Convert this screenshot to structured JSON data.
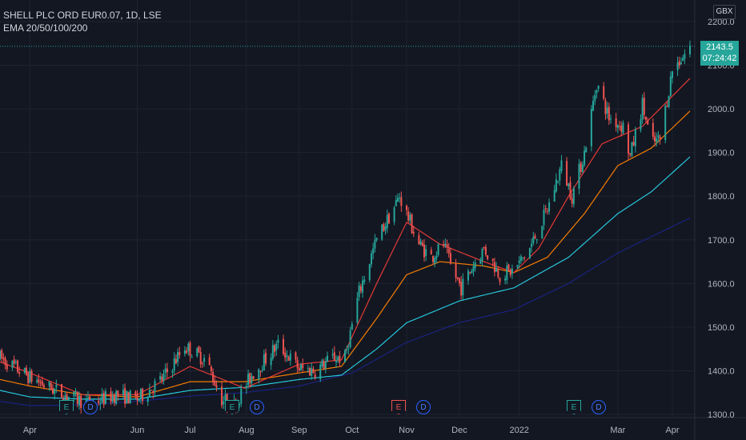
{
  "header": {
    "symbol_line": "SHELL PLC ORD EUR0.07, 1D, LSE",
    "indicator_line": "EMA 20/50/100/200"
  },
  "currency": "GBX",
  "last_price": {
    "value": "2143.5",
    "countdown": "07:24:42",
    "color": "#26a69a"
  },
  "events": [
    {
      "type": "E",
      "color": "green"
    },
    {
      "type": "D",
      "color": "blue"
    },
    {
      "type": "E",
      "color": "green"
    },
    {
      "type": "D",
      "color": "blue"
    },
    {
      "type": "E",
      "color": "red"
    },
    {
      "type": "D",
      "color": "blue"
    },
    {
      "type": "E",
      "color": "green"
    },
    {
      "type": "D",
      "color": "blue"
    }
  ],
  "chart_data": {
    "type": "candlestick",
    "title": "SHELL PLC ORD EUR0.07, 1D, LSE",
    "y_ticks": [
      "1300.0",
      "1400.0",
      "1500.0",
      "1600.0",
      "1700.0",
      "1800.0",
      "1900.0",
      "2000.0",
      "2100.0",
      "2200.0"
    ],
    "ylim": [
      1295,
      2235
    ],
    "x_ticks": [
      "Apr",
      "Jun",
      "Jul",
      "Aug",
      "Sep",
      "Oct",
      "Nov",
      "Dec",
      "2022",
      "Mar",
      "Apr"
    ],
    "x_tick_dates": [
      "2021-04-01",
      "2021-06-01",
      "2021-07-01",
      "2021-08-02",
      "2021-09-01",
      "2021-10-01",
      "2021-11-01",
      "2021-12-01",
      "2022-01-04",
      "2022-03-01",
      "2022-04-01"
    ],
    "colors": {
      "up": "#26a69a",
      "down": "#ef5350",
      "ema20": "#e53935",
      "ema50": "#f57c00",
      "ema100": "#26c6da",
      "ema200": "#1a237e"
    },
    "price_keypoints": [
      [
        "2021-03-15",
        1430
      ],
      [
        "2021-04-01",
        1385
      ],
      [
        "2021-04-20",
        1345
      ],
      [
        "2021-05-05",
        1325
      ],
      [
        "2021-05-20",
        1345
      ],
      [
        "2021-06-01",
        1335
      ],
      [
        "2021-06-15",
        1380
      ],
      [
        "2021-06-28",
        1455
      ],
      [
        "2021-07-10",
        1425
      ],
      [
        "2021-07-19",
        1335
      ],
      [
        "2021-07-26",
        1320
      ],
      [
        "2021-08-05",
        1390
      ],
      [
        "2021-08-20",
        1460
      ],
      [
        "2021-09-01",
        1405
      ],
      [
        "2021-09-10",
        1400
      ],
      [
        "2021-09-20",
        1430
      ],
      [
        "2021-09-27",
        1430
      ],
      [
        "2021-10-05",
        1580
      ],
      [
        "2021-10-15",
        1700
      ],
      [
        "2021-10-25",
        1775
      ],
      [
        "2021-10-28",
        1800
      ],
      [
        "2021-11-01",
        1760
      ],
      [
        "2021-11-08",
        1690
      ],
      [
        "2021-11-15",
        1660
      ],
      [
        "2021-11-22",
        1690
      ],
      [
        "2021-11-26",
        1640
      ],
      [
        "2021-12-02",
        1590
      ],
      [
        "2021-12-10",
        1650
      ],
      [
        "2021-12-15",
        1680
      ],
      [
        "2021-12-24",
        1620
      ],
      [
        "2022-01-01",
        1630
      ],
      [
        "2022-01-10",
        1680
      ],
      [
        "2022-01-20",
        1770
      ],
      [
        "2022-01-28",
        1870
      ],
      [
        "2022-02-03",
        1800
      ],
      [
        "2022-02-10",
        1900
      ],
      [
        "2022-02-17",
        2060
      ],
      [
        "2022-02-24",
        1980
      ],
      [
        "2022-03-04",
        1960
      ],
      [
        "2022-03-08",
        1890
      ],
      [
        "2022-03-15",
        2010
      ],
      [
        "2022-03-20",
        1920
      ],
      [
        "2022-03-25",
        1930
      ],
      [
        "2022-04-01",
        2090
      ],
      [
        "2022-04-07",
        2120
      ],
      [
        "2022-04-11",
        2143.5
      ]
    ],
    "ema20": [
      [
        "2021-03-15",
        1420
      ],
      [
        "2021-04-01",
        1395
      ],
      [
        "2021-05-01",
        1345
      ],
      [
        "2021-06-01",
        1345
      ],
      [
        "2021-07-01",
        1410
      ],
      [
        "2021-08-01",
        1360
      ],
      [
        "2021-09-01",
        1415
      ],
      [
        "2021-09-25",
        1425
      ],
      [
        "2021-10-15",
        1600
      ],
      [
        "2021-11-01",
        1740
      ],
      [
        "2021-11-20",
        1690
      ],
      [
        "2021-12-15",
        1650
      ],
      [
        "2022-01-01",
        1625
      ],
      [
        "2022-01-15",
        1680
      ],
      [
        "2022-02-01",
        1800
      ],
      [
        "2022-02-20",
        1920
      ],
      [
        "2022-03-15",
        1960
      ],
      [
        "2022-04-11",
        2070
      ]
    ],
    "ema50": [
      [
        "2021-03-15",
        1380
      ],
      [
        "2021-04-01",
        1365
      ],
      [
        "2021-05-01",
        1345
      ],
      [
        "2021-06-01",
        1340
      ],
      [
        "2021-07-01",
        1375
      ],
      [
        "2021-08-01",
        1375
      ],
      [
        "2021-09-01",
        1395
      ],
      [
        "2021-09-25",
        1410
      ],
      [
        "2021-10-15",
        1520
      ],
      [
        "2021-11-01",
        1620
      ],
      [
        "2021-11-20",
        1650
      ],
      [
        "2021-12-15",
        1640
      ],
      [
        "2022-01-01",
        1625
      ],
      [
        "2022-01-20",
        1660
      ],
      [
        "2022-02-10",
        1760
      ],
      [
        "2022-03-01",
        1870
      ],
      [
        "2022-03-20",
        1910
      ],
      [
        "2022-04-11",
        1995
      ]
    ],
    "ema100": [
      [
        "2021-03-15",
        1355
      ],
      [
        "2021-04-01",
        1340
      ],
      [
        "2021-05-01",
        1335
      ],
      [
        "2021-06-01",
        1335
      ],
      [
        "2021-07-01",
        1355
      ],
      [
        "2021-08-01",
        1362
      ],
      [
        "2021-09-01",
        1380
      ],
      [
        "2021-09-25",
        1390
      ],
      [
        "2021-10-15",
        1450
      ],
      [
        "2021-11-01",
        1510
      ],
      [
        "2021-12-01",
        1560
      ],
      [
        "2022-01-01",
        1590
      ],
      [
        "2022-02-01",
        1660
      ],
      [
        "2022-03-01",
        1760
      ],
      [
        "2022-03-20",
        1810
      ],
      [
        "2022-04-11",
        1890
      ]
    ],
    "ema200": [
      [
        "2021-03-15",
        1330
      ],
      [
        "2021-04-01",
        1320
      ],
      [
        "2021-05-01",
        1322
      ],
      [
        "2021-06-01",
        1330
      ],
      [
        "2021-07-01",
        1342
      ],
      [
        "2021-08-01",
        1350
      ],
      [
        "2021-09-01",
        1365
      ],
      [
        "2021-10-01",
        1395
      ],
      [
        "2021-11-01",
        1465
      ],
      [
        "2021-12-01",
        1510
      ],
      [
        "2022-01-01",
        1540
      ],
      [
        "2022-02-01",
        1600
      ],
      [
        "2022-03-01",
        1670
      ],
      [
        "2022-04-11",
        1750
      ]
    ]
  }
}
